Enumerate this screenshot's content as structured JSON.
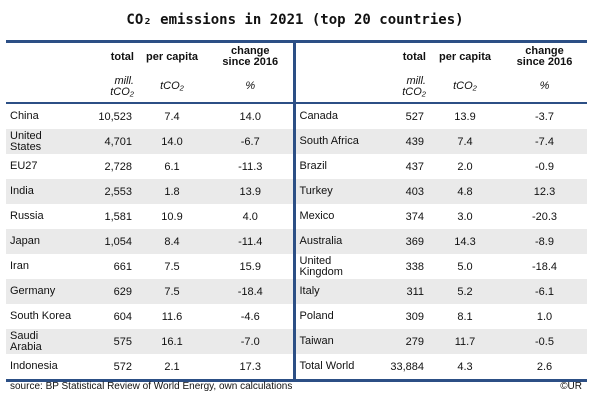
{
  "title": "CO₂ emissions in 2021 (top 20 countries)",
  "header": {
    "total": "total",
    "per_capita": "per capita",
    "change_line1": "change",
    "change_line2": "since 2016",
    "unit_total_line1": "mill.",
    "unit_total_line2": "tCO₂",
    "unit_per_capita": "tCO₂",
    "unit_change": "%"
  },
  "rows": [
    {
      "left": {
        "country": "China",
        "total": "10,523",
        "per_capita": "7.4",
        "change": "14.0"
      },
      "right": {
        "country": "Canada",
        "total": "527",
        "per_capita": "13.9",
        "change": "-3.7"
      }
    },
    {
      "left": {
        "country": "United States",
        "total": "4,701",
        "per_capita": "14.0",
        "change": "-6.7"
      },
      "right": {
        "country": "South Africa",
        "total": "439",
        "per_capita": "7.4",
        "change": "-7.4"
      }
    },
    {
      "left": {
        "country": "EU27",
        "total": "2,728",
        "per_capita": "6.1",
        "change": "-11.3"
      },
      "right": {
        "country": "Brazil",
        "total": "437",
        "per_capita": "2.0",
        "change": "-0.9"
      }
    },
    {
      "left": {
        "country": "India",
        "total": "2,553",
        "per_capita": "1.8",
        "change": "13.9"
      },
      "right": {
        "country": "Turkey",
        "total": "403",
        "per_capita": "4.8",
        "change": "12.3"
      }
    },
    {
      "left": {
        "country": "Russia",
        "total": "1,581",
        "per_capita": "10.9",
        "change": "4.0"
      },
      "right": {
        "country": "Mexico",
        "total": "374",
        "per_capita": "3.0",
        "change": "-20.3"
      }
    },
    {
      "left": {
        "country": "Japan",
        "total": "1,054",
        "per_capita": "8.4",
        "change": "-11.4"
      },
      "right": {
        "country": "Australia",
        "total": "369",
        "per_capita": "14.3",
        "change": "-8.9"
      }
    },
    {
      "left": {
        "country": "Iran",
        "total": "661",
        "per_capita": "7.5",
        "change": "15.9"
      },
      "right": {
        "country": "United Kingdom",
        "total": "338",
        "per_capita": "5.0",
        "change": "-18.4"
      }
    },
    {
      "left": {
        "country": "Germany",
        "total": "629",
        "per_capita": "7.5",
        "change": "-18.4"
      },
      "right": {
        "country": "Italy",
        "total": "311",
        "per_capita": "5.2",
        "change": "-6.1"
      }
    },
    {
      "left": {
        "country": "South Korea",
        "total": "604",
        "per_capita": "11.6",
        "change": "-4.6"
      },
      "right": {
        "country": "Poland",
        "total": "309",
        "per_capita": "8.1",
        "change": "1.0"
      }
    },
    {
      "left": {
        "country": "Saudi Arabia",
        "total": "575",
        "per_capita": "16.1",
        "change": "-7.0"
      },
      "right": {
        "country": "Taiwan",
        "total": "279",
        "per_capita": "11.7",
        "change": "-0.5"
      }
    },
    {
      "left": {
        "country": "Indonesia",
        "total": "572",
        "per_capita": "2.1",
        "change": "17.3"
      },
      "right": {
        "country": "Total World",
        "total": "33,884",
        "per_capita": "4.3",
        "change": "2.6"
      }
    }
  ],
  "footer": {
    "source": "source: BP Statistical Review of World Energy, own calculations",
    "copyright": "©UR"
  },
  "colors": {
    "rule": "#2c4f85",
    "row_shade": "#eaeaea"
  }
}
